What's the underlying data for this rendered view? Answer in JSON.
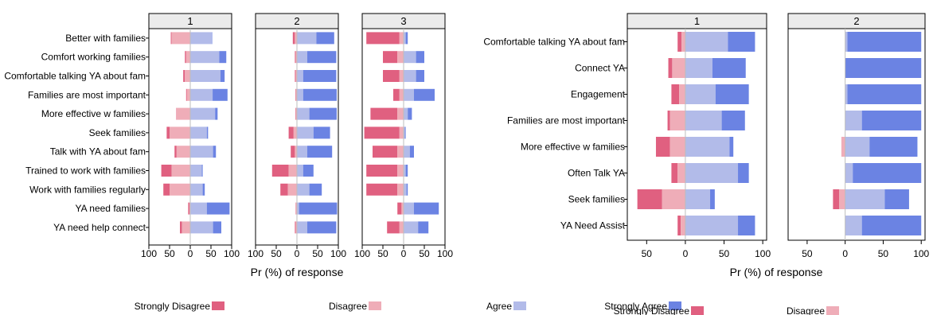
{
  "chart_data": [
    {
      "type": "diverging-stacked-bar",
      "xlabel": "Pr (%) of response",
      "xlim": [
        -100,
        100
      ],
      "xticks": [
        "100",
        "50",
        "0",
        "50",
        "100"
      ],
      "legend_position": "bottom",
      "legend": [
        "Strongly Disagree",
        "Disagree",
        "Agree",
        "Strongly Agree"
      ],
      "colors": {
        "sd": "#e06080",
        "d": "#efadb8",
        "a": "#b2bbe9",
        "sa": "#6b83e3"
      },
      "categories": [
        "Better with families",
        "Comfort working families",
        "Comfortable talking YA about fam",
        "Families are most important",
        "More effective w families",
        "Seek families",
        "Talk with YA about fam",
        "Trained to work with families",
        "Work with families regularly",
        "YA need families",
        "YA need help connect"
      ],
      "panels": [
        {
          "label": "1",
          "rows": [
            {
              "sd": 2,
              "d": 45,
              "a": 52,
              "sa": 1
            },
            {
              "sd": 3,
              "d": 10,
              "a": 70,
              "sa": 17
            },
            {
              "sd": 4,
              "d": 13,
              "a": 73,
              "sa": 10
            },
            {
              "sd": 2,
              "d": 8,
              "a": 54,
              "sa": 36
            },
            {
              "sd": 1,
              "d": 33,
              "a": 60,
              "sa": 6
            },
            {
              "sd": 7,
              "d": 50,
              "a": 40,
              "sa": 3
            },
            {
              "sd": 5,
              "d": 33,
              "a": 55,
              "sa": 7
            },
            {
              "sd": 25,
              "d": 45,
              "a": 28,
              "sa": 2
            },
            {
              "sd": 15,
              "d": 50,
              "a": 30,
              "sa": 5
            },
            {
              "sd": 3,
              "d": 2,
              "a": 40,
              "sa": 55
            },
            {
              "sd": 5,
              "d": 20,
              "a": 55,
              "sa": 20
            }
          ]
        },
        {
          "label": "2",
          "rows": [
            {
              "sd": 5,
              "d": 5,
              "a": 47,
              "sa": 43
            },
            {
              "sd": 2,
              "d": 3,
              "a": 25,
              "sa": 70
            },
            {
              "sd": 2,
              "d": 3,
              "a": 15,
              "sa": 80
            },
            {
              "sd": 1,
              "d": 3,
              "a": 15,
              "sa": 81
            },
            {
              "sd": 1,
              "d": 3,
              "a": 30,
              "sa": 66
            },
            {
              "sd": 12,
              "d": 8,
              "a": 40,
              "sa": 40
            },
            {
              "sd": 10,
              "d": 5,
              "a": 25,
              "sa": 60
            },
            {
              "sd": 40,
              "d": 20,
              "a": 15,
              "sa": 25
            },
            {
              "sd": 18,
              "d": 22,
              "a": 30,
              "sa": 30
            },
            {
              "sd": 1,
              "d": 2,
              "a": 5,
              "sa": 92
            },
            {
              "sd": 2,
              "d": 3,
              "a": 25,
              "sa": 70
            }
          ]
        },
        {
          "label": "3",
          "rows": [
            {
              "sd": 80,
              "d": 10,
              "a": 5,
              "sa": 5
            },
            {
              "sd": 35,
              "d": 15,
              "a": 30,
              "sa": 20
            },
            {
              "sd": 40,
              "d": 10,
              "a": 30,
              "sa": 20
            },
            {
              "sd": 15,
              "d": 10,
              "a": 25,
              "sa": 50
            },
            {
              "sd": 65,
              "d": 15,
              "a": 10,
              "sa": 10
            },
            {
              "sd": 85,
              "d": 10,
              "a": 3,
              "sa": 2
            },
            {
              "sd": 60,
              "d": 15,
              "a": 15,
              "sa": 10
            },
            {
              "sd": 75,
              "d": 15,
              "a": 5,
              "sa": 5
            },
            {
              "sd": 75,
              "d": 15,
              "a": 7,
              "sa": 3
            },
            {
              "sd": 10,
              "d": 5,
              "a": 25,
              "sa": 60
            },
            {
              "sd": 30,
              "d": 10,
              "a": 35,
              "sa": 25
            }
          ]
        }
      ]
    },
    {
      "type": "diverging-stacked-bar",
      "xlabel": "Pr (%) of response",
      "xlim": [
        -75,
        105
      ],
      "xticks": [
        "50",
        "0",
        "50",
        "100"
      ],
      "legend_position": "bottom",
      "legend": [
        "Strongly Disagree",
        "Disagree",
        "Agree",
        "Strongly Agree"
      ],
      "colors": {
        "sd": "#e06080",
        "d": "#efadb8",
        "a": "#b2bbe9",
        "sa": "#6b83e3"
      },
      "categories": [
        "Comfortable talking YA about fam",
        "Connect YA",
        "Engagement",
        "Families are most important",
        "More effective w families",
        "Often Talk YA",
        "Seek families",
        "YA Need Assist"
      ],
      "panels": [
        {
          "label": "1",
          "rows": [
            {
              "sd": 5,
              "d": 5,
              "a": 55,
              "sa": 35
            },
            {
              "sd": 5,
              "d": 17,
              "a": 35,
              "sa": 43
            },
            {
              "sd": 10,
              "d": 8,
              "a": 39,
              "sa": 43
            },
            {
              "sd": 3,
              "d": 20,
              "a": 47,
              "sa": 30
            },
            {
              "sd": 18,
              "d": 20,
              "a": 57,
              "sa": 5
            },
            {
              "sd": 8,
              "d": 10,
              "a": 68,
              "sa": 14
            },
            {
              "sd": 32,
              "d": 30,
              "a": 32,
              "sa": 6
            },
            {
              "sd": 4,
              "d": 6,
              "a": 68,
              "sa": 22
            }
          ]
        },
        {
          "label": "2",
          "rows": [
            {
              "sd": 0,
              "d": 0,
              "a": 3,
              "sa": 97
            },
            {
              "sd": 0,
              "d": 0,
              "a": 0,
              "sa": 100
            },
            {
              "sd": 0,
              "d": 0,
              "a": 3,
              "sa": 97
            },
            {
              "sd": 0,
              "d": 0,
              "a": 22,
              "sa": 78
            },
            {
              "sd": 0,
              "d": 5,
              "a": 32,
              "sa": 63
            },
            {
              "sd": 0,
              "d": 0,
              "a": 10,
              "sa": 90
            },
            {
              "sd": 8,
              "d": 8,
              "a": 52,
              "sa": 32
            },
            {
              "sd": 0,
              "d": 0,
              "a": 22,
              "sa": 78
            }
          ]
        }
      ]
    }
  ]
}
